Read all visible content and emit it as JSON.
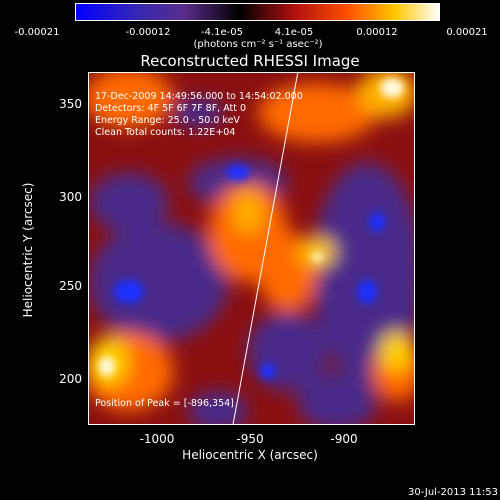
{
  "colorbar": {
    "ticks": [
      "-0.00021",
      "-0.00012",
      "-4.1e-05",
      "4.1e-05",
      "0.00012",
      "0.00021"
    ],
    "units": "(photons cm⁻² s⁻¹ asec⁻²)",
    "colors": [
      "#0000ff",
      "#4a2aa0",
      "#5a2c8a",
      "#000000",
      "#b01010",
      "#ff5500",
      "#ffd000",
      "#ffffff"
    ]
  },
  "title": "Reconstructed RHESSI Image",
  "info": {
    "time": "17-Dec-2009 14:49:56.000 to 14:54:02.000",
    "detectors": "Detectors: 4F 5F 6F 7F 8F, Att 0",
    "energy": "Energy Range: 25.0 - 50.0 keV",
    "clean": "Clean     Total counts: 1.22E+04"
  },
  "peak": "Position of Peak = [-896,354]",
  "axes": {
    "xlabel": "Heliocentric X (arcsec)",
    "ylabel": "Heliocentric Y (arcsec)",
    "xticks": [
      "-1000",
      "-950",
      "-900"
    ],
    "yticks": [
      "350",
      "300",
      "250",
      "200"
    ]
  },
  "footer": "30-Jul-2013 11:53"
}
